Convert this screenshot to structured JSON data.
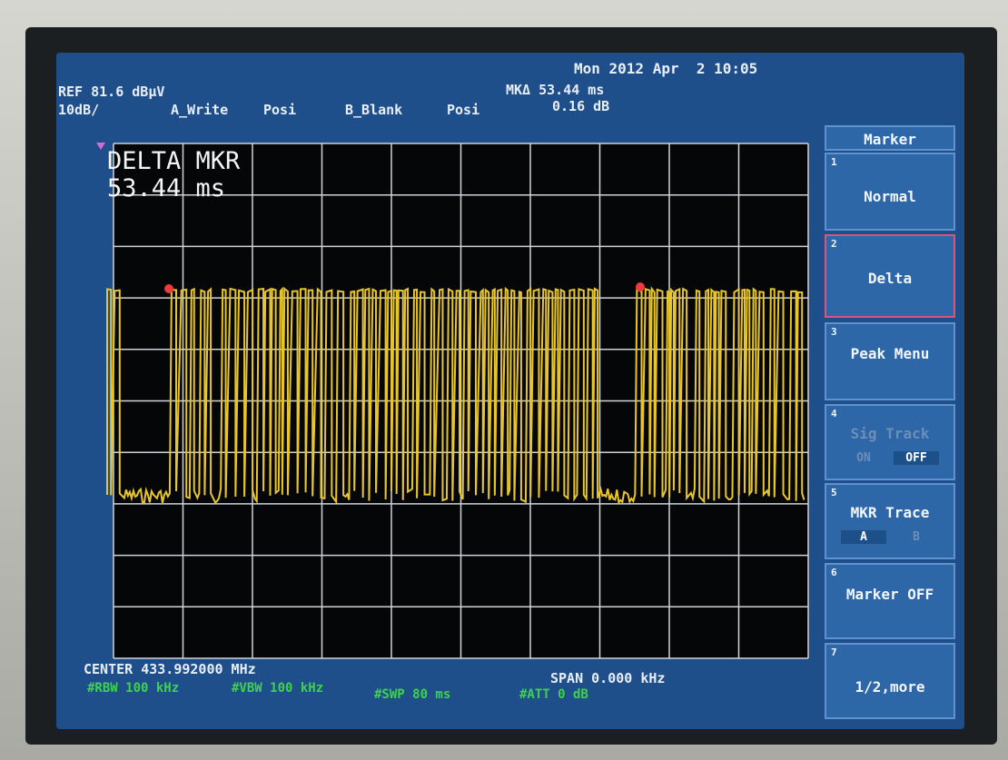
{
  "header": {
    "ref": "REF 81.6 dBµV",
    "scale": "10dB/",
    "trace_a": "A_Write",
    "pos_a": "Posi",
    "trace_b": "B_Blank",
    "pos_b": "Posi",
    "marker": "MKΔ 53.44 ms",
    "marker_level": "0.16 dB",
    "datetime": "Mon 2012 Apr  2 10:05"
  },
  "overlay": {
    "line1": "DELTA MKR",
    "line2": "53.44 ms"
  },
  "footer": {
    "center": "CENTER 433.992000 MHz",
    "span": "SPAN 0.000 kHz",
    "rbw": "#RBW 100 kHz",
    "vbw": "#VBW 100 kHz",
    "swp": "#SWP 80 ms",
    "att": "#ATT 0 dB"
  },
  "menu": {
    "title": "Marker",
    "items": [
      {
        "num": "1",
        "label": "Normal"
      },
      {
        "num": "2",
        "label": "Delta"
      },
      {
        "num": "3",
        "label": "Peak Menu"
      },
      {
        "num": "4",
        "label": "Sig Track",
        "options": [
          "ON",
          "OFF"
        ]
      },
      {
        "num": "5",
        "label": "MKR Trace",
        "options": [
          "A",
          "B"
        ]
      },
      {
        "num": "6",
        "label": "Marker OFF"
      },
      {
        "num": "7",
        "label": "1/2,more"
      }
    ]
  }
}
